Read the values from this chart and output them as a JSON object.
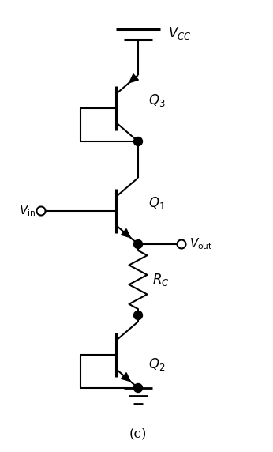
{
  "bg_color": "#ffffff",
  "title_label": "(c)",
  "vcc_label": "$V_{CC}$",
  "vin_label": "$V_{\\mathrm{in}}$",
  "vout_label": "$V_{\\mathrm{out}}$",
  "q1_label": "$Q_1$",
  "q2_label": "$Q_2$",
  "q3_label": "$Q_3$",
  "rc_label": "$R_C$",
  "fig_width": 3.46,
  "fig_height": 5.72
}
